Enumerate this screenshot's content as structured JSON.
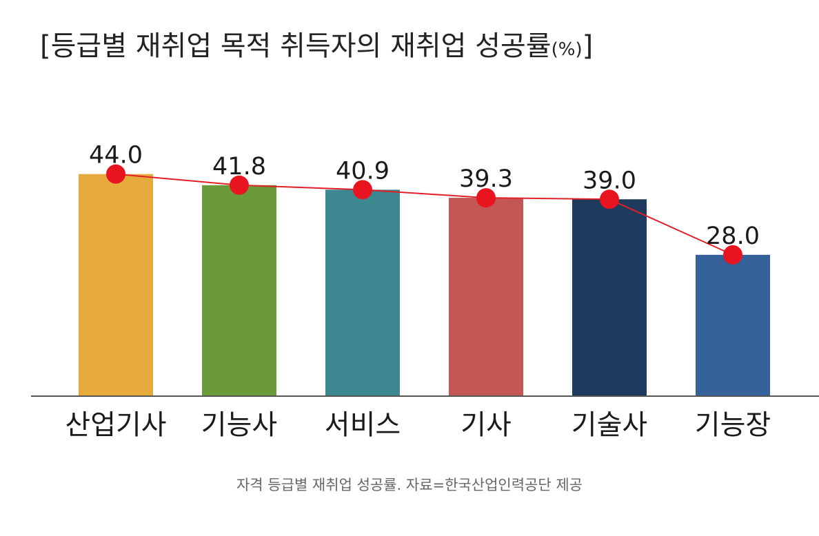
{
  "chart_data": {
    "type": "bar",
    "title": "[등급별 재취업 목적 취득자의 재취업 성공률",
    "title_unit": "(%)",
    "title_close": "]",
    "categories": [
      "산업기사",
      "기능사",
      "서비스",
      "기사",
      "기술사",
      "기능장"
    ],
    "values": [
      44.0,
      41.8,
      40.9,
      39.3,
      39.0,
      28.0
    ],
    "value_labels": [
      "44.0",
      "41.8",
      "40.9",
      "39.3",
      "39.0",
      "28.0"
    ],
    "ylim": [
      0,
      46
    ],
    "grid": false,
    "legend": "none",
    "overlay_line": true,
    "colors": [
      "#E6AB3C",
      "#6A9A3A",
      "#3D8790",
      "#C45653",
      "#1E3B5E",
      "#35619A"
    ],
    "line_color": "#E21F26",
    "marker_color": "#E8141F",
    "axis_color": "#555555"
  },
  "caption": "자격 등급별 재취업 성공률. 자료=한국산업인력공단 제공"
}
